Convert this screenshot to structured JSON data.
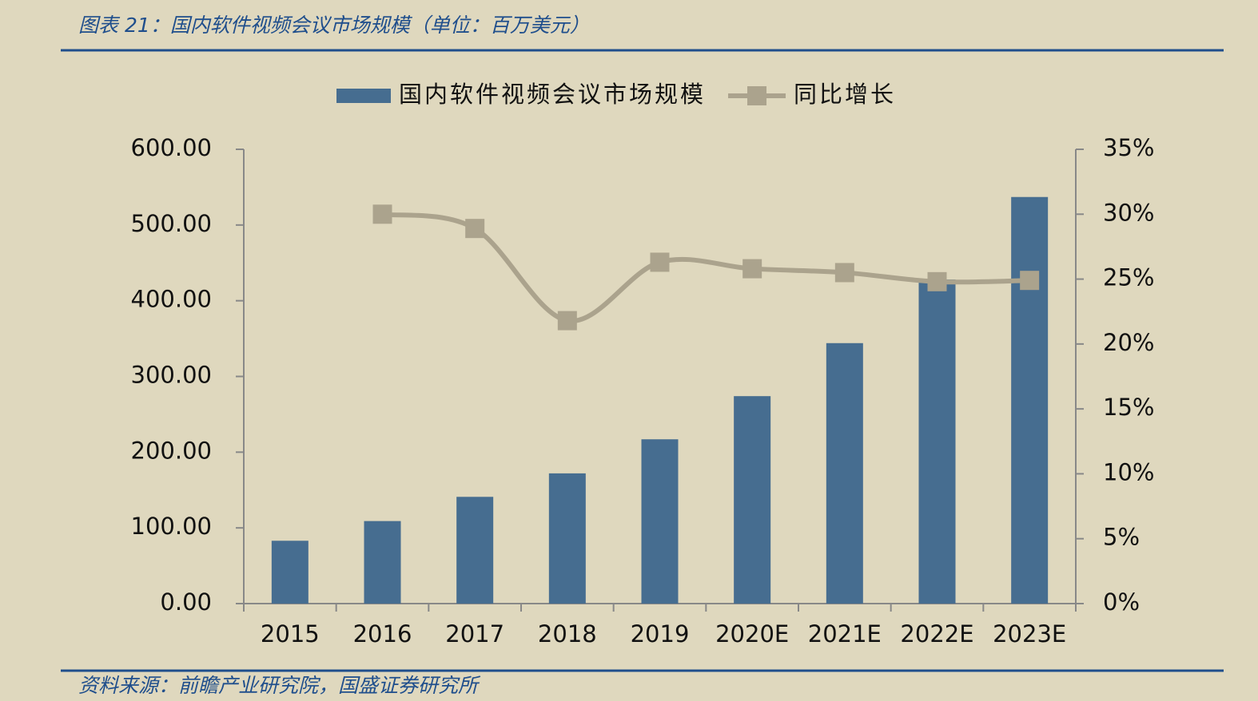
{
  "header": {
    "title": "图表 21：国内软件视频会议市场规模（单位：百万美元）"
  },
  "footer": {
    "source": "资料来源：前瞻产业研究院，国盛证券研究所"
  },
  "chart_data": {
    "type": "combo",
    "categories": [
      "2015",
      "2016",
      "2017",
      "2018",
      "2019",
      "2020E",
      "2021E",
      "2022E",
      "2023E"
    ],
    "series": [
      {
        "name": "国内软件视频会议市场规模",
        "type": "bar",
        "color": "#466d90",
        "values": [
          83,
          109,
          141,
          172,
          217,
          274,
          344,
          428,
          537
        ]
      },
      {
        "name": "同比增长",
        "type": "line",
        "axis": "y2",
        "color": "#aba38d",
        "values": [
          null,
          30.0,
          28.9,
          21.8,
          26.3,
          25.8,
          25.5,
          24.8,
          24.9
        ]
      }
    ],
    "ylim": [
      0,
      600
    ],
    "yticks": [
      {
        "value": 0,
        "label": "0.00"
      },
      {
        "value": 100,
        "label": "100.00"
      },
      {
        "value": 200,
        "label": "200.00"
      },
      {
        "value": 300,
        "label": "300.00"
      },
      {
        "value": 400,
        "label": "400.00"
      },
      {
        "value": 500,
        "label": "500.00"
      },
      {
        "value": 600,
        "label": "600.00"
      }
    ],
    "y2lim": [
      0,
      35
    ],
    "y2ticks": [
      {
        "value": 0,
        "label": "0%"
      },
      {
        "value": 5,
        "label": "5%"
      },
      {
        "value": 10,
        "label": "10%"
      },
      {
        "value": 15,
        "label": "15%"
      },
      {
        "value": 20,
        "label": "20%"
      },
      {
        "value": 25,
        "label": "25%"
      },
      {
        "value": 30,
        "label": "30%"
      },
      {
        "value": 35,
        "label": "35%"
      }
    ],
    "legend": "top"
  }
}
